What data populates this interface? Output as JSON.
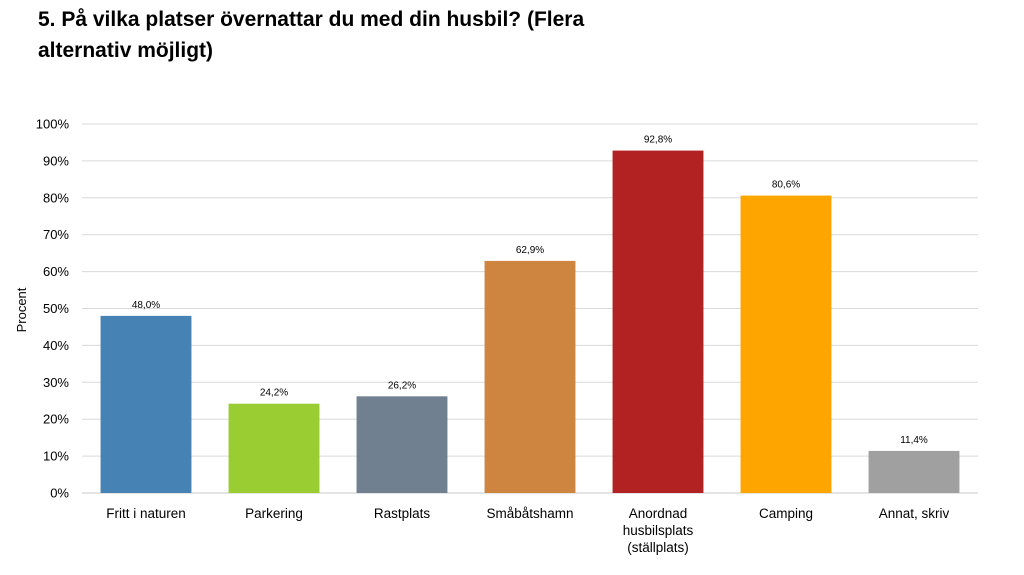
{
  "title": "5. På vilka platser övernattar du med din husbil? (Flera alternativ möjligt)",
  "chart_data": {
    "type": "bar",
    "title": "5. På vilka platser övernattar du med din husbil? (Flera alternativ möjligt)",
    "ylabel": "Procent",
    "xlabel": "",
    "ylim": [
      0,
      100
    ],
    "yticks": [
      "0%",
      "10%",
      "20%",
      "30%",
      "40%",
      "50%",
      "60%",
      "70%",
      "80%",
      "90%",
      "100%"
    ],
    "grid": true,
    "categories": [
      "Fritt i naturen",
      "Parkering",
      "Rastplats",
      "Småbåtshamn",
      "Anordnad husbilsplats (ställplats)",
      "Camping",
      "Annat, skriv"
    ],
    "category_lines": [
      [
        "Fritt i naturen"
      ],
      [
        "Parkering"
      ],
      [
        "Rastplats"
      ],
      [
        "Småbåtshamn"
      ],
      [
        "Anordnad",
        "husbilsplats",
        "(ställplats)"
      ],
      [
        "Camping"
      ],
      [
        "Annat, skriv"
      ]
    ],
    "values": [
      48.0,
      24.2,
      26.2,
      62.9,
      92.8,
      80.6,
      11.4
    ],
    "data_labels": [
      "48,0%",
      "24,2%",
      "26,2%",
      "62,9%",
      "92,8%",
      "80,6%",
      "11,4%"
    ],
    "colors": [
      "#4682B4",
      "#9ACD32",
      "#708090",
      "#CD853F",
      "#B22222",
      "#FFA500",
      "#A0A0A0"
    ]
  }
}
